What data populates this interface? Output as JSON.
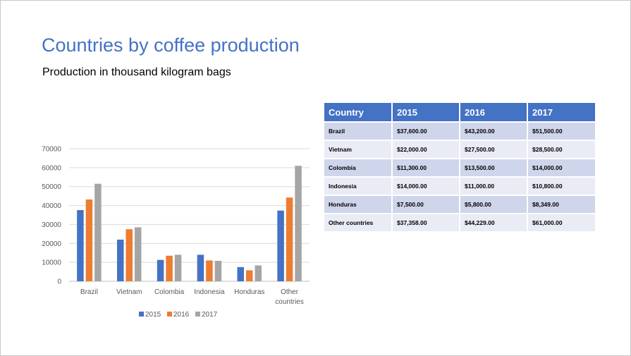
{
  "slide": {
    "title": "Countries by coffee production",
    "subtitle": "Production in thousand kilogram bags"
  },
  "colors": {
    "s2015": "#4472c4",
    "s2016": "#ed7d31",
    "s2017": "#a5a5a5",
    "table_header": "#4472c4",
    "row_odd": "#cfd5ea",
    "row_even": "#e9ebf5"
  },
  "chart_data": {
    "type": "bar",
    "categories": [
      [
        "Brazil"
      ],
      [
        "Vietnam"
      ],
      [
        "Colombia"
      ],
      [
        "Indonesia"
      ],
      [
        "Honduras"
      ],
      [
        "Other",
        "countries"
      ]
    ],
    "series": [
      {
        "name": "2015",
        "values": [
          37600,
          22000,
          11300,
          14000,
          7500,
          37358
        ]
      },
      {
        "name": "2016",
        "values": [
          43200,
          27500,
          13500,
          11000,
          5800,
          44229
        ]
      },
      {
        "name": "2017",
        "values": [
          51500,
          28500,
          14000,
          10800,
          8349,
          61000
        ]
      }
    ],
    "ylim": [
      0,
      70000
    ],
    "yticks": [
      0,
      10000,
      20000,
      30000,
      40000,
      50000,
      60000,
      70000
    ],
    "grid": true,
    "legend": "bottom"
  },
  "table": {
    "headers": [
      "Country",
      "2015",
      "2016",
      "2017"
    ],
    "rows": [
      [
        "Brazil",
        "$37,600.00",
        "$43,200.00",
        "$51,500.00"
      ],
      [
        "Vietnam",
        "$22,000.00",
        "$27,500.00",
        "$28,500.00"
      ],
      [
        "Colombia",
        "$11,300.00",
        "$13,500.00",
        "$14,000.00"
      ],
      [
        "Indonesia",
        "$14,000.00",
        "$11,000.00",
        "$10,800.00"
      ],
      [
        "Honduras",
        "$7,500.00",
        "$5,800.00",
        "$8,349.00"
      ],
      [
        "Other countries",
        "$37,358.00",
        "$44,229.00",
        "$61,000.00"
      ]
    ]
  }
}
